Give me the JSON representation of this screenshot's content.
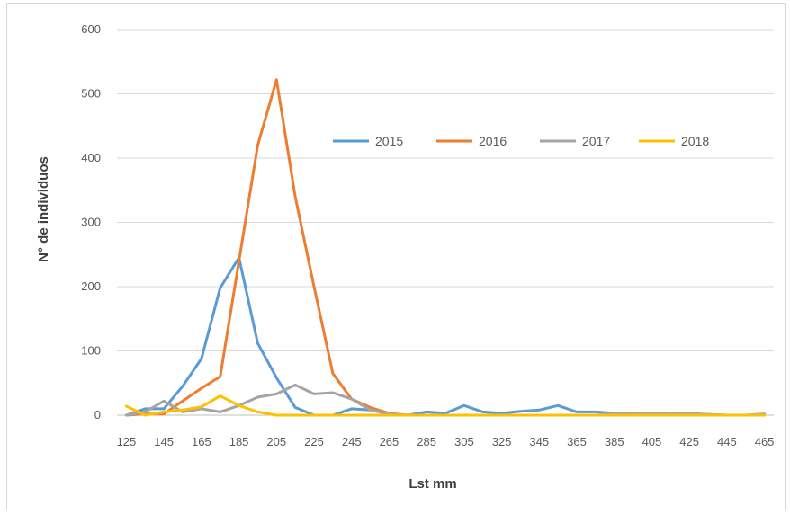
{
  "chart_data": {
    "type": "line",
    "title": "",
    "xlabel": "Lst mm",
    "ylabel": "N° de individuos",
    "ylim": [
      0,
      600
    ],
    "yticks": [
      0,
      100,
      200,
      300,
      400,
      500,
      600
    ],
    "x": [
      125,
      135,
      145,
      155,
      165,
      175,
      185,
      195,
      205,
      215,
      225,
      235,
      245,
      255,
      265,
      275,
      285,
      295,
      305,
      315,
      325,
      335,
      345,
      355,
      365,
      375,
      385,
      395,
      405,
      415,
      425,
      435,
      445,
      455,
      465
    ],
    "xtick_labels": [
      "125",
      "145",
      "165",
      "185",
      "205",
      "225",
      "245",
      "265",
      "285",
      "305",
      "325",
      "345",
      "365",
      "385",
      "405",
      "425",
      "445",
      "465"
    ],
    "grid": "horizontal",
    "legend_position": "inside-top-right",
    "series": [
      {
        "name": "2015",
        "color": "#5b9bd5",
        "values": [
          0,
          10,
          10,
          45,
          88,
          198,
          245,
          112,
          58,
          12,
          0,
          0,
          10,
          8,
          2,
          0,
          5,
          3,
          15,
          5,
          3,
          6,
          8,
          15,
          5,
          5,
          3,
          2,
          2,
          1,
          2,
          1,
          0,
          0,
          1
        ]
      },
      {
        "name": "2016",
        "color": "#ed7d31",
        "values": [
          0,
          2,
          2,
          22,
          42,
          60,
          240,
          420,
          522,
          340,
          200,
          65,
          25,
          12,
          3,
          0,
          0,
          0,
          0,
          0,
          0,
          0,
          0,
          0,
          0,
          0,
          0,
          0,
          0,
          0,
          0,
          0,
          0,
          0,
          0
        ]
      },
      {
        "name": "2017",
        "color": "#a5a5a5",
        "values": [
          0,
          5,
          22,
          5,
          10,
          5,
          15,
          28,
          33,
          47,
          33,
          35,
          25,
          8,
          2,
          0,
          0,
          0,
          0,
          0,
          0,
          0,
          0,
          0,
          0,
          0,
          2,
          2,
          3,
          2,
          3,
          1,
          0,
          0,
          2
        ]
      },
      {
        "name": "2018",
        "color": "#ffc000",
        "values": [
          14,
          0,
          5,
          8,
          13,
          30,
          15,
          5,
          0,
          0,
          0,
          0,
          0,
          0,
          0,
          0,
          0,
          0,
          0,
          0,
          0,
          0,
          0,
          0,
          0,
          0,
          0,
          0,
          0,
          0,
          0,
          0,
          0,
          0,
          0
        ]
      }
    ]
  }
}
